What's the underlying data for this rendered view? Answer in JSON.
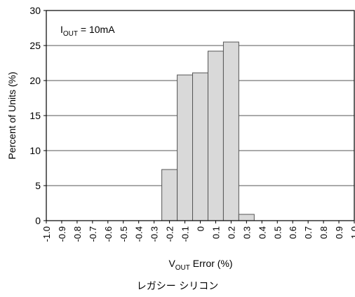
{
  "caption": "レガシー シリコン",
  "annotation": {
    "base": "I",
    "sub": "OUT",
    "rest": " = 10mA"
  },
  "chart_data": {
    "type": "bar",
    "title": "",
    "annotation": "IOUT = 10mA",
    "xlabel": {
      "base": "V",
      "sub": "OUT",
      "rest": " Error (%)"
    },
    "ylabel": "Percent of Units (%)",
    "xlim": [
      -1.0,
      1.0
    ],
    "ylim": [
      0,
      30
    ],
    "yticks": [
      "0",
      "5",
      "10",
      "15",
      "20",
      "25",
      "30"
    ],
    "xticks": [
      "-1.0",
      "-0.9",
      "-0.8",
      "-0.7",
      "-0.6",
      "-0.5",
      "-0.4",
      "-0.3",
      "-0.2",
      "-0.1",
      "0",
      "0.1",
      "0.2",
      "0.3",
      "0.4",
      "0.5",
      "0.6",
      "0.7",
      "0.8",
      "0.9",
      "1.0"
    ],
    "bin_width": 0.1,
    "bins": [
      {
        "center": -0.2,
        "value": 7.3
      },
      {
        "center": -0.1,
        "value": 20.8
      },
      {
        "center": 0.0,
        "value": 21.1
      },
      {
        "center": 0.1,
        "value": 24.2
      },
      {
        "center": 0.2,
        "value": 25.5
      },
      {
        "center": 0.3,
        "value": 0.9
      }
    ],
    "grid": "horizontal",
    "colors": {
      "bar_fill": "#d9d9d9",
      "bar_stroke": "#555555",
      "grid": "#555555",
      "axis": "#000000"
    }
  }
}
